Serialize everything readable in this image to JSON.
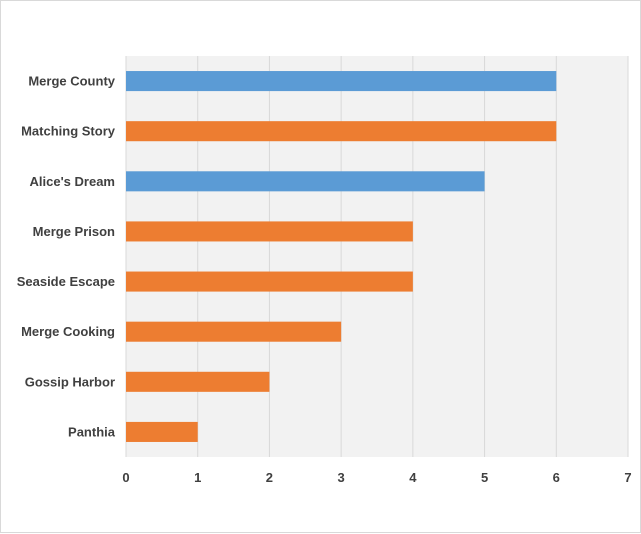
{
  "chart_data": {
    "type": "bar",
    "orientation": "horizontal",
    "title": "",
    "xlabel": "",
    "ylabel": "",
    "categories": [
      "Merge County",
      "Matching Story",
      "Alice's Dream",
      "Merge Prison",
      "Seaside Escape",
      "Merge Cooking",
      "Gossip Harbor",
      "Panthia"
    ],
    "values": [
      6,
      6,
      5,
      4,
      4,
      3,
      2,
      1
    ],
    "bar_colors": [
      "#5b9bd5",
      "#ed7d31",
      "#5b9bd5",
      "#ed7d31",
      "#ed7d31",
      "#ed7d31",
      "#ed7d31",
      "#ed7d31"
    ],
    "xlim": [
      0,
      7
    ],
    "x_ticks": [
      "0",
      "1",
      "2",
      "3",
      "4",
      "5",
      "6",
      "7"
    ],
    "grid": true,
    "legend": "none",
    "colors": {
      "blue": "#5b9bd5",
      "orange": "#ed7d31",
      "plot_background": "#f2f2f2",
      "gridline": "#d9d9d9"
    }
  }
}
